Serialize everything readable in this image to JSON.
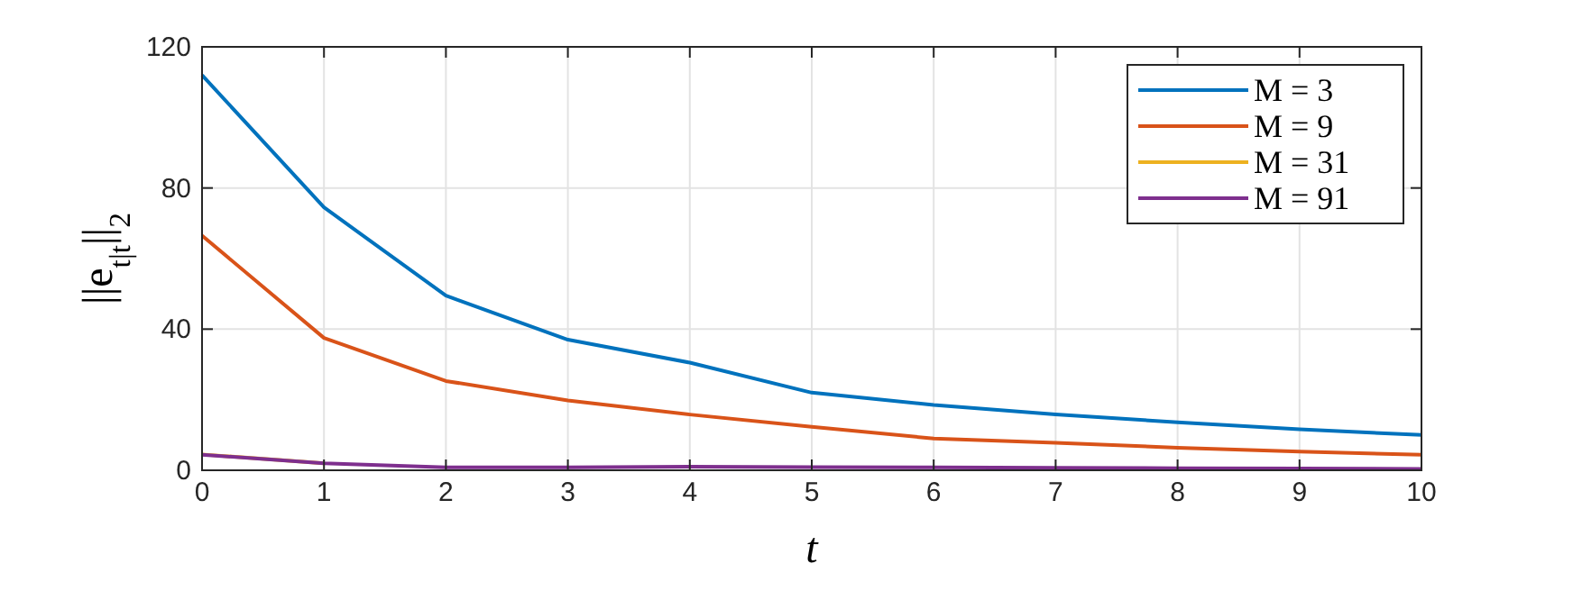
{
  "chart_data": {
    "type": "line",
    "xlabel": "t",
    "ylabel": "||e$_{t|t}$||$_{2}$",
    "x": [
      0,
      1,
      2,
      3,
      4,
      5,
      6,
      7,
      8,
      9,
      10
    ],
    "series": [
      {
        "name": "M = 3",
        "color": "#0072bd",
        "values": [
          112,
          74.5,
          49.5,
          37,
          30.5,
          22,
          18.5,
          15.8,
          13.6,
          11.6,
          10
        ]
      },
      {
        "name": "M = 9",
        "color": "#d95319",
        "values": [
          66.5,
          37.5,
          25.3,
          19.8,
          15.8,
          12.3,
          9,
          7.8,
          6.4,
          5.3,
          4.4
        ]
      },
      {
        "name": "M = 31",
        "color": "#edb120",
        "values": [
          4.5,
          2,
          null,
          null,
          null,
          null,
          null,
          null,
          null,
          null,
          null
        ]
      },
      {
        "name": "M = 91",
        "color": "#7e2f8e",
        "values": [
          4.4,
          2,
          0.8,
          0.8,
          1,
          0.9,
          0.8,
          0.7,
          0.6,
          0.5,
          0.4
        ]
      }
    ],
    "xlim": [
      0,
      10
    ],
    "xticks": [
      0,
      1,
      2,
      3,
      4,
      5,
      6,
      7,
      8,
      9,
      10
    ],
    "ylim": [
      0,
      120
    ],
    "yticks": [
      0,
      40,
      80,
      120
    ],
    "grid": true,
    "legend": "top right",
    "marker": "none",
    "line_style": "solid"
  }
}
